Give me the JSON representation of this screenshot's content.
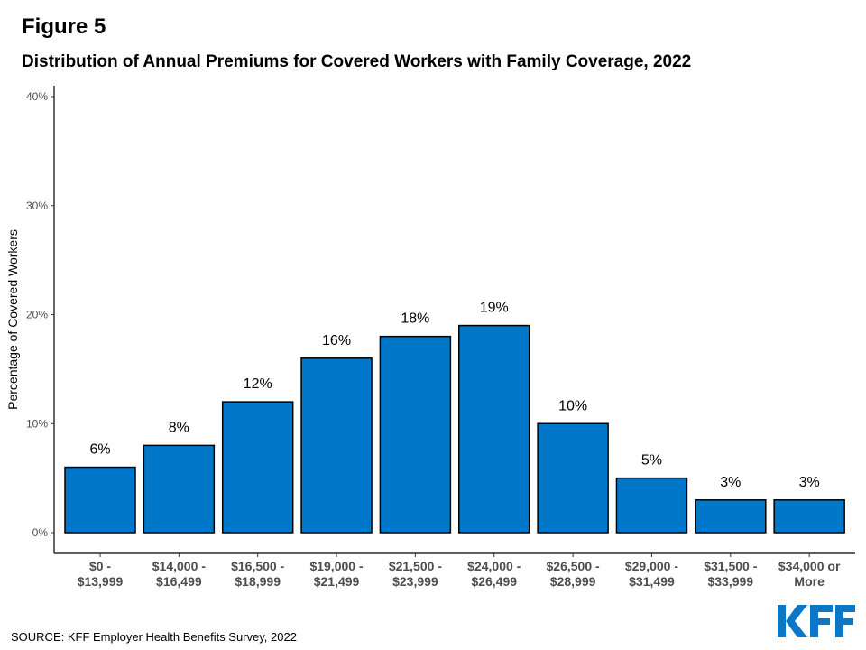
{
  "figure_label": "Figure 5",
  "source": "SOURCE: KFF Employer Health Benefits Survey, 2022",
  "logo": {
    "text": "KFF",
    "color": "#0d77c7"
  },
  "chart_data": {
    "type": "bar",
    "title": "Distribution of Annual Premiums for Covered Workers with Family Coverage, 2022",
    "ylabel": "Percentage of Covered Workers",
    "xlabel": "",
    "categories": [
      [
        "$0 -",
        "$13,999"
      ],
      [
        "$14,000 -",
        "$16,499"
      ],
      [
        "$16,500 -",
        "$18,999"
      ],
      [
        "$19,000 -",
        "$21,499"
      ],
      [
        "$21,500 -",
        "$23,999"
      ],
      [
        "$24,000 -",
        "$26,499"
      ],
      [
        "$26,500 -",
        "$28,999"
      ],
      [
        "$29,000 -",
        "$31,499"
      ],
      [
        "$31,500 -",
        "$33,999"
      ],
      [
        "$34,000 or",
        "More"
      ]
    ],
    "values": [
      6,
      8,
      12,
      16,
      18,
      19,
      10,
      5,
      3,
      3
    ],
    "data_labels": [
      "6%",
      "8%",
      "12%",
      "16%",
      "18%",
      "19%",
      "10%",
      "5%",
      "3%",
      "3%"
    ],
    "ylim": [
      0,
      41
    ],
    "yticks": [
      0,
      10,
      20,
      30,
      40
    ],
    "ytick_labels": [
      "0%",
      "10%",
      "20%",
      "30%",
      "40%"
    ],
    "bar_color": "#0077c8",
    "grid": false
  }
}
